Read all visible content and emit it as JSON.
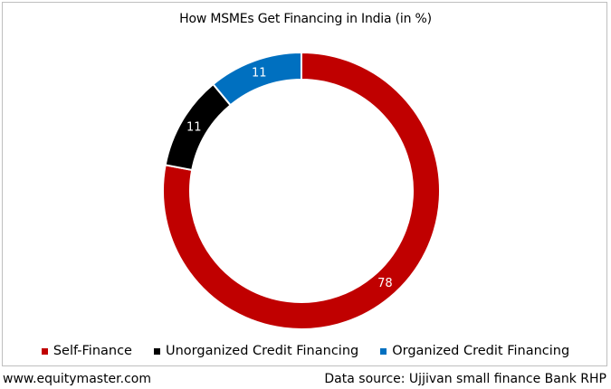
{
  "chart_data": {
    "type": "pie",
    "title": "How MSMEs Get Financing in India (in %)",
    "donut": true,
    "start_angle_deg": 0,
    "direction": "clockwise",
    "categories": [
      "Self-Finance",
      "Unorganized Credit Financing",
      "Organized Credit Financing"
    ],
    "values": [
      78,
      11,
      11
    ],
    "data_labels": [
      "78",
      "11",
      "11"
    ],
    "colors": [
      "#c00000",
      "#000000",
      "#0070c0"
    ],
    "legend_position": "bottom"
  },
  "footer": {
    "website": "www.equitymaster.com",
    "source": "Data source: Ujjivan small finance Bank RHP"
  }
}
